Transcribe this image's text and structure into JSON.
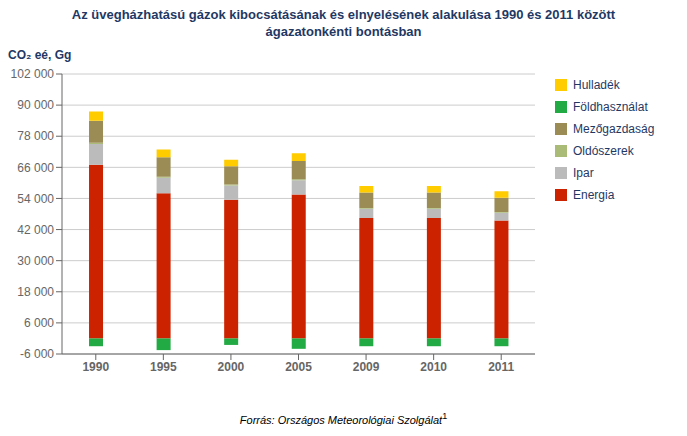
{
  "chart_data": {
    "type": "bar",
    "stacked": true,
    "title": "Az üvegházhatású gázok kibocsátásának és elnyelésének alakulása 1990 és 2011 között\nágazatonkénti bontásban",
    "y_label": "CO₂ eé, Gg",
    "footnote": "Forrás: Országos Meteorológiai Szolgálat",
    "footnote_super": "1",
    "categories": [
      "1990",
      "1995",
      "2000",
      "2005",
      "2009",
      "2010",
      "2011"
    ],
    "series": [
      {
        "name": "Energia",
        "color": "#CC2200",
        "values": [
          67000,
          56000,
          53500,
          55500,
          46500,
          46500,
          45500
        ]
      },
      {
        "name": "Ipar",
        "color": "#BBBBBB",
        "values": [
          8000,
          6000,
          5500,
          5500,
          3500,
          3500,
          3000
        ]
      },
      {
        "name": "Oldószerek",
        "color": "#AABB77",
        "values": [
          500,
          400,
          400,
          400,
          300,
          300,
          300
        ]
      },
      {
        "name": "Mezőgazdaság",
        "color": "#9B8B55",
        "values": [
          8500,
          7500,
          7000,
          7000,
          6000,
          6000,
          5500
        ]
      },
      {
        "name": "Földhasználat",
        "color": "#22AA44",
        "values": [
          -3000,
          -4500,
          -2500,
          -4000,
          -3000,
          -3000,
          -3000
        ]
      },
      {
        "name": "Hulladék",
        "color": "#FFCC00",
        "values": [
          3500,
          3000,
          2500,
          3000,
          2500,
          2500,
          2500
        ]
      }
    ],
    "ylim": [
      -6000,
      102000
    ],
    "yticks": [
      {
        "value": -6000,
        "label": "-6 000"
      },
      {
        "value": 6000,
        "label": "6 000"
      },
      {
        "value": 18000,
        "label": "18 000"
      },
      {
        "value": 30000,
        "label": "30 000"
      },
      {
        "value": 42000,
        "label": "42 000"
      },
      {
        "value": 54000,
        "label": "54 000"
      },
      {
        "value": 66000,
        "label": "66 000"
      },
      {
        "value": 78000,
        "label": "78 000"
      },
      {
        "value": 90000,
        "label": "90 000"
      },
      {
        "value": 102000,
        "label": "102 000"
      }
    ],
    "grid": true,
    "legend": "right"
  }
}
